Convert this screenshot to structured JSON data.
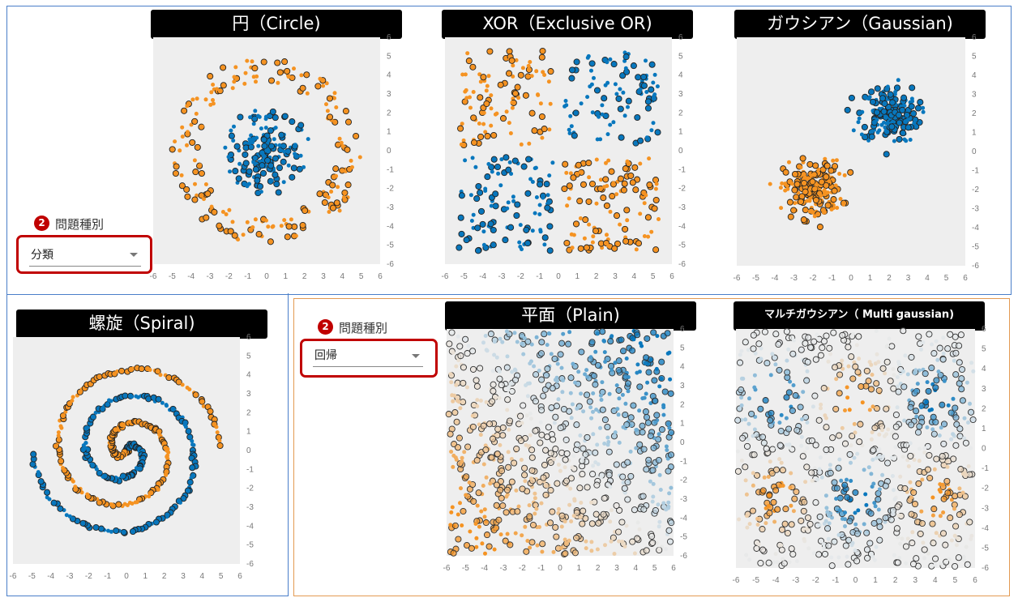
{
  "datasets": [
    {
      "title": "円（Circle)",
      "kind": "circle"
    },
    {
      "title": "XOR（Exclusive OR)",
      "kind": "xor"
    },
    {
      "title": "ガウシアン（Gaussian)",
      "kind": "gauss"
    },
    {
      "title": "螺旋（Spiral)",
      "kind": "spiral"
    },
    {
      "title": "平面（Plain)",
      "kind": "plain"
    },
    {
      "title": "マルチガウシアン（ Multi gaussian)",
      "kind": "multi"
    }
  ],
  "problem_type_classification": {
    "badge": "2",
    "label": "問題種別",
    "value": "分類"
  },
  "problem_type_regression": {
    "badge": "2",
    "label": "問題種別",
    "value": "回帰"
  },
  "axis": {
    "x_ticks": [
      "-6",
      "-5",
      "-4",
      "-3",
      "-2",
      "-1",
      "0",
      "1",
      "2",
      "3",
      "4",
      "5",
      "6"
    ],
    "y_ticks": [
      "6",
      "5",
      "4",
      "3",
      "2",
      "1",
      "0",
      "-1",
      "-2",
      "-3",
      "-4",
      "-5",
      "-6"
    ]
  },
  "colors": {
    "orange": "#f59322",
    "blue": "#0877bd",
    "background": "#eeeeee",
    "frame_blue": "#4a7ec9",
    "frame_orange": "#e39a52",
    "highlight_red": "#c00000"
  }
}
